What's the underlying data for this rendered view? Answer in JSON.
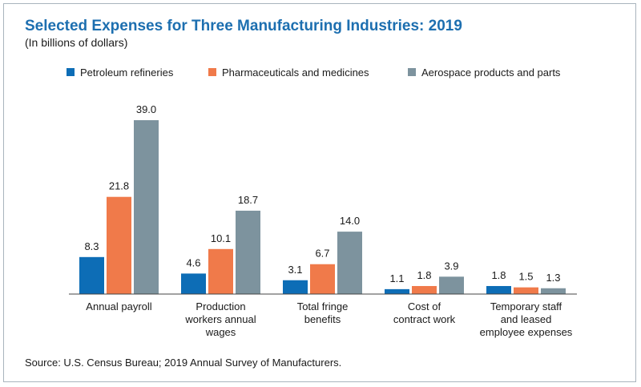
{
  "title": "Selected Expenses for Three Manufacturing Industries: 2019",
  "subtitle": "(In billions of dollars)",
  "source": "Source: U.S. Census Bureau; 2019 Annual Survey of Manufacturers.",
  "chart_data": {
    "type": "bar",
    "legend_position": "top",
    "grid": false,
    "ylim": [
      0,
      39.0
    ],
    "categories": [
      [
        "Annual payroll"
      ],
      [
        "Production",
        "workers annual",
        "wages"
      ],
      [
        "Total fringe",
        "benefits"
      ],
      [
        "Cost of",
        "contract work"
      ],
      [
        "Temporary staff",
        "and leased",
        "employee expenses"
      ]
    ],
    "series": [
      {
        "name": "Petroleum refineries",
        "color": "#0d6db6",
        "values": [
          8.3,
          4.6,
          3.1,
          1.1,
          1.8
        ],
        "labels": [
          "8.3",
          "4.6",
          "3.1",
          "1.1",
          "1.8"
        ]
      },
      {
        "name": "Pharmaceuticals and medicines",
        "color": "#f07a4a",
        "values": [
          21.8,
          10.1,
          6.7,
          1.8,
          1.5
        ],
        "labels": [
          "21.8",
          "10.1",
          "6.7",
          "1.8",
          "1.5"
        ]
      },
      {
        "name": "Aerospace products and parts",
        "color": "#7d939e",
        "values": [
          39.0,
          18.7,
          14.0,
          3.9,
          1.3
        ],
        "labels": [
          "39.0",
          "18.7",
          "14.0",
          "3.9",
          "1.3"
        ]
      }
    ]
  }
}
